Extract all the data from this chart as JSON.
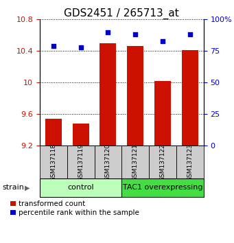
{
  "title": "GDS2451 / 265713_at",
  "samples": [
    "GSM137118",
    "GSM137119",
    "GSM137120",
    "GSM137121",
    "GSM137122",
    "GSM137123"
  ],
  "bar_values": [
    9.54,
    9.48,
    10.5,
    10.46,
    10.02,
    10.41
  ],
  "scatter_values": [
    79,
    78,
    90,
    88,
    83,
    88
  ],
  "bar_color": "#cc1100",
  "scatter_color": "#0000cc",
  "ylim_left": [
    9.2,
    10.8
  ],
  "ylim_right": [
    0,
    100
  ],
  "yticks_left": [
    9.2,
    9.6,
    10.0,
    10.4,
    10.8
  ],
  "yticks_right": [
    0,
    25,
    50,
    75,
    100
  ],
  "ytick_labels_left": [
    "9.2",
    "9.6",
    "10",
    "10.4",
    "10.8"
  ],
  "ytick_labels_right": [
    "0",
    "25",
    "50",
    "75",
    "100%"
  ],
  "groups": [
    {
      "label": "control",
      "indices": [
        0,
        1,
        2
      ],
      "color": "#bbffbb"
    },
    {
      "label": "TAC1 overexpressing",
      "indices": [
        3,
        4,
        5
      ],
      "color": "#44dd44"
    }
  ],
  "group_row_bg": "#cccccc",
  "legend_labels": [
    "transformed count",
    "percentile rank within the sample"
  ],
  "strain_label": "strain",
  "bar_width": 0.6,
  "fig_width": 3.41,
  "fig_height": 3.54,
  "dpi": 100
}
